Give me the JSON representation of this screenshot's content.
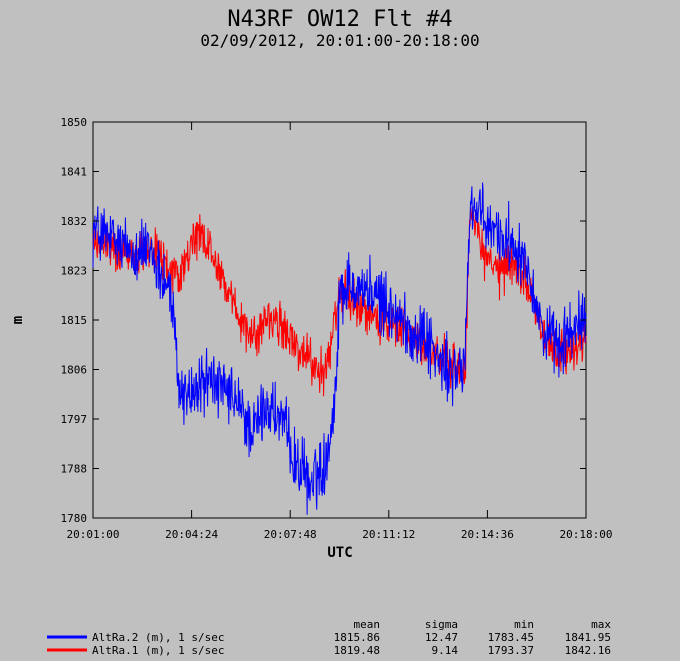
{
  "title": "N43RF OW12 Flt #4",
  "subtitle": "02/09/2012, 20:01:00-20:18:00",
  "chart_data": {
    "type": "line",
    "title": "N43RF OW12 Flt #4",
    "subtitle": "02/09/2012, 20:01:00-20:18:00",
    "xlabel": "UTC",
    "ylabel": "m",
    "x_ticks": [
      "20:01:00",
      "20:04:24",
      "20:07:48",
      "20:11:12",
      "20:14:36",
      "20:18:00"
    ],
    "y_ticks": [
      "1850",
      "1841",
      "1832",
      "1823",
      "1815",
      "1806",
      "1797",
      "1788",
      "1780"
    ],
    "ylim": [
      1780,
      1850
    ],
    "grid": false,
    "legend_position": "bottom",
    "stats_headers": [
      "mean",
      "sigma",
      "min",
      "max"
    ],
    "series": [
      {
        "name": "AltRa.2 (m), 1 s/sec",
        "color": "#0000ff",
        "stats": [
          "1815.86",
          "12.47",
          "1783.45",
          "1841.95"
        ],
        "trend_x": [
          "20:01:00",
          "20:02:00",
          "20:03:00",
          "20:03:40",
          "20:04:00",
          "20:04:30",
          "20:05:00",
          "20:05:30",
          "20:06:00",
          "20:06:30",
          "20:07:00",
          "20:07:30",
          "20:08:00",
          "20:08:30",
          "20:09:00",
          "20:09:20",
          "20:09:30",
          "20:10:00",
          "20:11:00",
          "20:12:00",
          "20:12:30",
          "20:13:00",
          "20:13:30",
          "20:13:50",
          "20:14:00",
          "20:14:30",
          "20:15:00",
          "20:15:30",
          "20:16:00",
          "20:16:30",
          "20:17:00",
          "20:17:30",
          "20:18:00"
        ],
        "trend_y": [
          1831,
          1828,
          1827,
          1820,
          1802,
          1802,
          1805,
          1802,
          1800,
          1795,
          1800,
          1797,
          1790,
          1786,
          1790,
          1800,
          1820,
          1822,
          1818,
          1813,
          1812,
          1807,
          1805,
          1808,
          1836,
          1832,
          1830,
          1829,
          1825,
          1813,
          1810,
          1813,
          1815
        ]
      },
      {
        "name": "AltRa.1 (m), 1 s/sec",
        "color": "#ff0000",
        "stats": [
          "1819.48",
          "9.14",
          "1793.37",
          "1842.16"
        ],
        "trend_x": [
          "20:01:00",
          "20:02:00",
          "20:03:00",
          "20:04:00",
          "20:04:30",
          "20:05:00",
          "20:05:30",
          "20:06:00",
          "20:06:30",
          "20:07:00",
          "20:07:30",
          "20:08:00",
          "20:08:30",
          "20:09:00",
          "20:09:30",
          "20:10:00",
          "20:11:00",
          "20:12:00",
          "20:12:30",
          "20:13:00",
          "20:13:30",
          "20:13:50",
          "20:14:00",
          "20:14:30",
          "20:15:00",
          "20:15:30",
          "20:16:00",
          "20:16:30",
          "20:17:00",
          "20:17:30",
          "20:18:00"
        ],
        "trend_y": [
          1829,
          1827,
          1828,
          1822,
          1830,
          1828,
          1822,
          1815,
          1812,
          1815,
          1814,
          1810,
          1808,
          1805,
          1820,
          1818,
          1815,
          1812,
          1810,
          1808,
          1807,
          1806,
          1834,
          1826,
          1823,
          1825,
          1822,
          1812,
          1809,
          1810,
          1812
        ]
      }
    ]
  }
}
